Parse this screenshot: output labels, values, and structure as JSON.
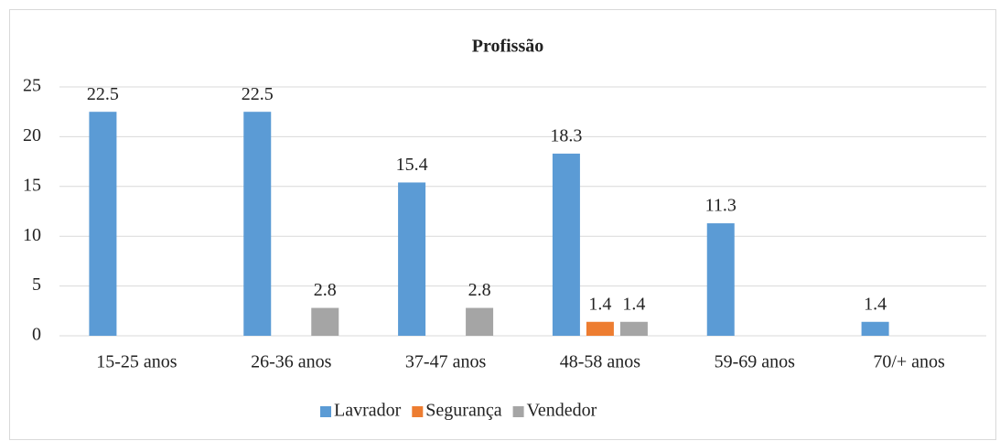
{
  "chart_data": {
    "type": "bar",
    "title": "Profissão",
    "categories": [
      "15-25 anos",
      "26-36 anos",
      "37-47 anos",
      "48-58 anos",
      "59-69 anos",
      "70/+ anos"
    ],
    "series": [
      {
        "name": "Lavrador",
        "color": "#5b9bd5",
        "values": [
          22.5,
          22.5,
          15.4,
          18.3,
          11.3,
          1.4
        ]
      },
      {
        "name": "Segurança",
        "color": "#ed7d31",
        "values": [
          null,
          null,
          null,
          1.4,
          null,
          null
        ]
      },
      {
        "name": "Vendedor",
        "color": "#a5a5a5",
        "values": [
          null,
          2.8,
          2.8,
          1.4,
          null,
          null
        ]
      }
    ],
    "ylim": [
      0,
      25
    ],
    "yticks": [
      0,
      5,
      10,
      15,
      20,
      25
    ],
    "grid": true,
    "legend": "bottom"
  }
}
